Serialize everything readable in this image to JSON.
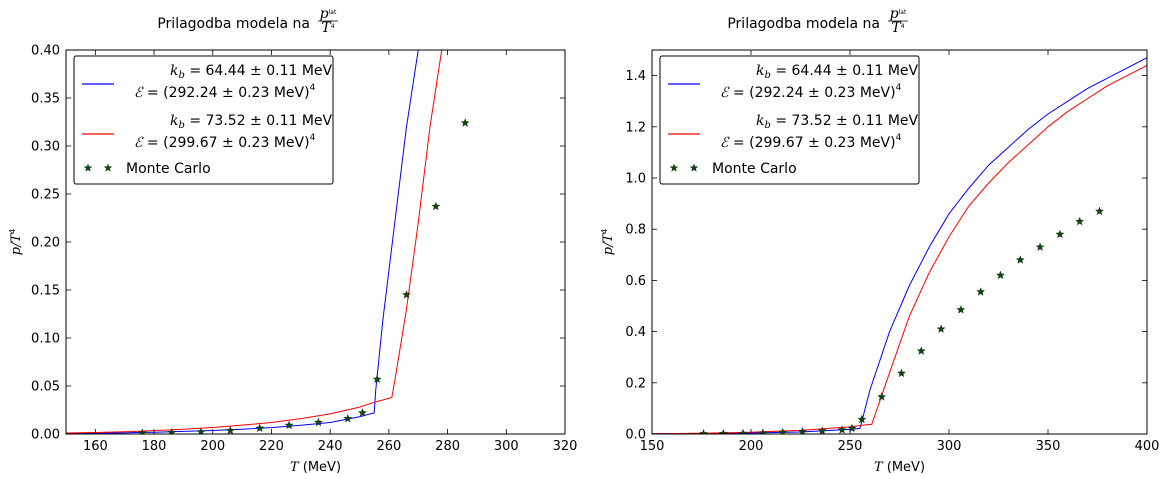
{
  "chart_data": [
    {
      "type": "line",
      "title": "Prilagodba modela na",
      "title_math": {
        "base": "p",
        "sup": "lat",
        "den_base": "T",
        "den_sup": "4"
      },
      "xlabel_var": "T",
      "xlabel_unit": "(MeV)",
      "ylabel_var": "p/T",
      "ylabel_sup": "4",
      "xlim": [
        150,
        320
      ],
      "ylim": [
        0,
        0.4
      ],
      "xticks": [
        160,
        180,
        200,
        220,
        240,
        260,
        280,
        300,
        320
      ],
      "yticks": [
        0.0,
        0.05,
        0.1,
        0.15,
        0.2,
        0.25,
        0.3,
        0.35,
        0.4
      ],
      "ytick_labels": [
        "0.00",
        "0.05",
        "0.10",
        "0.15",
        "0.20",
        "0.25",
        "0.30",
        "0.35",
        "0.40"
      ],
      "legend_position": "top-left",
      "series": [
        {
          "color": "#0000ff",
          "legend_line1_var": "k",
          "legend_line1_sub": "b",
          "legend_line1_rest": " = 64.44 ± 0.11 MeV",
          "legend_line2_var": "ℰ",
          "legend_line2_rest": " = (292.24 ± 0.23 MeV)",
          "legend_line2_sup": "4",
          "x": [
            150,
            160,
            170,
            180,
            190,
            200,
            210,
            220,
            230,
            240,
            250,
            255,
            255.5,
            258,
            262,
            266,
            270,
            274
          ],
          "y": [
            0.0005,
            0.0008,
            0.0012,
            0.0018,
            0.0027,
            0.0037,
            0.005,
            0.0067,
            0.0091,
            0.012,
            0.018,
            0.022,
            0.045,
            0.12,
            0.22,
            0.32,
            0.4,
            0.48
          ]
        },
        {
          "color": "#ff0000",
          "legend_line1_var": "k",
          "legend_line1_sub": "b",
          "legend_line1_rest": " = 73.52 ± 0.11 MeV",
          "legend_line2_var": "ℰ",
          "legend_line2_rest": " = (299.67 ± 0.23 MeV)",
          "legend_line2_sup": "4",
          "x": [
            150,
            160,
            170,
            180,
            190,
            200,
            210,
            220,
            230,
            240,
            250,
            255,
            261,
            262,
            266,
            270,
            274,
            278,
            282
          ],
          "y": [
            0.001,
            0.0015,
            0.0023,
            0.0035,
            0.005,
            0.0068,
            0.0092,
            0.012,
            0.016,
            0.021,
            0.028,
            0.033,
            0.038,
            0.055,
            0.13,
            0.22,
            0.32,
            0.4,
            0.48
          ]
        },
        {
          "type": "scatter",
          "name": "Monte Carlo",
          "color": "#0b4a0b",
          "marker": "star",
          "x": [
            176,
            186,
            196,
            206,
            216,
            226,
            236,
            246,
            251,
            256,
            266,
            276,
            286
          ],
          "y": [
            0.001,
            0.0015,
            0.002,
            0.0035,
            0.006,
            0.009,
            0.012,
            0.016,
            0.022,
            0.057,
            0.145,
            0.237,
            0.324
          ]
        }
      ]
    },
    {
      "type": "line",
      "title": "Prilagodba modela na",
      "title_math": {
        "base": "p",
        "sup": "lat",
        "den_base": "T",
        "den_sup": "4"
      },
      "xlabel_var": "T",
      "xlabel_unit": "(MeV)",
      "ylabel_var": "p/T",
      "ylabel_sup": "4",
      "xlim": [
        150,
        400
      ],
      "ylim": [
        0,
        1.5
      ],
      "xticks": [
        150,
        200,
        250,
        300,
        350,
        400
      ],
      "yticks": [
        0.0,
        0.2,
        0.4,
        0.6,
        0.8,
        1.0,
        1.2,
        1.4
      ],
      "ytick_labels": [
        "0.0",
        "0.2",
        "0.4",
        "0.6",
        "0.8",
        "1.0",
        "1.2",
        "1.4"
      ],
      "legend_position": "top-left",
      "series": [
        {
          "color": "#0000ff",
          "legend_line1_var": "k",
          "legend_line1_sub": "b",
          "legend_line1_rest": " = 64.44 ± 0.11 MeV",
          "legend_line2_var": "ℰ",
          "legend_line2_rest": " = (292.24 ± 0.23 MeV)",
          "legend_line2_sup": "4",
          "x": [
            150,
            175,
            200,
            225,
            250,
            255,
            256,
            260,
            270,
            280,
            290,
            300,
            310,
            320,
            330,
            340,
            350,
            360,
            370,
            380,
            390,
            400
          ],
          "y": [
            0.001,
            0.002,
            0.004,
            0.008,
            0.018,
            0.022,
            0.05,
            0.17,
            0.4,
            0.58,
            0.73,
            0.86,
            0.96,
            1.05,
            1.12,
            1.19,
            1.25,
            1.3,
            1.35,
            1.39,
            1.43,
            1.47
          ]
        },
        {
          "color": "#ff0000",
          "legend_line1_var": "k",
          "legend_line1_sub": "b",
          "legend_line1_rest": " = 73.52 ± 0.11 MeV",
          "legend_line2_var": "ℰ",
          "legend_line2_rest": " = (299.67 ± 0.23 MeV)",
          "legend_line2_sup": "4",
          "x": [
            150,
            175,
            200,
            225,
            250,
            255,
            261,
            262,
            270,
            280,
            290,
            300,
            310,
            320,
            330,
            340,
            350,
            360,
            370,
            380,
            390,
            400
          ],
          "y": [
            0.001,
            0.003,
            0.007,
            0.014,
            0.028,
            0.033,
            0.038,
            0.06,
            0.24,
            0.46,
            0.63,
            0.77,
            0.89,
            0.98,
            1.06,
            1.13,
            1.2,
            1.26,
            1.31,
            1.36,
            1.4,
            1.44
          ]
        },
        {
          "type": "scatter",
          "name": "Monte Carlo",
          "color": "#0b4a0b",
          "marker": "star",
          "x": [
            176,
            186,
            196,
            206,
            216,
            226,
            236,
            246,
            251,
            256,
            266,
            276,
            286,
            296,
            306,
            316,
            326,
            336,
            346,
            356,
            366,
            376
          ],
          "y": [
            0.001,
            0.0015,
            0.002,
            0.0035,
            0.006,
            0.009,
            0.012,
            0.016,
            0.022,
            0.057,
            0.145,
            0.237,
            0.324,
            0.41,
            0.485,
            0.555,
            0.62,
            0.68,
            0.73,
            0.78,
            0.83,
            0.87
          ]
        }
      ]
    }
  ]
}
